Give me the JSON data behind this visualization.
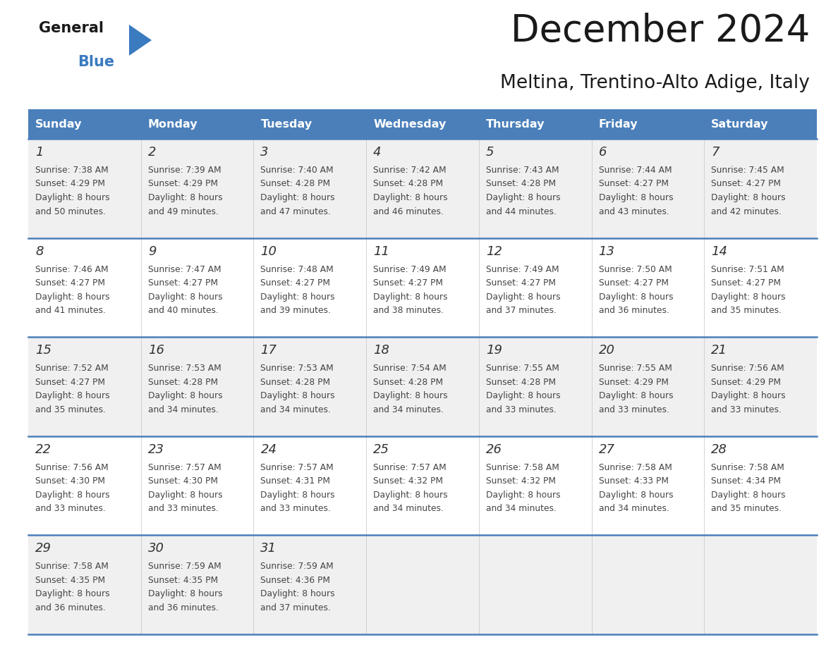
{
  "title": "December 2024",
  "subtitle": "Meltina, Trentino-Alto Adige, Italy",
  "days_of_week": [
    "Sunday",
    "Monday",
    "Tuesday",
    "Wednesday",
    "Thursday",
    "Friday",
    "Saturday"
  ],
  "header_bg": "#4a7fba",
  "header_text": "#ffffff",
  "row_bg_odd": "#f0f0f0",
  "row_bg_even": "#ffffff",
  "cell_text_color": "#333333",
  "day_num_color": "#333333",
  "line_color": "#4a7fba",
  "logo_general_color": "#1a1a1a",
  "logo_blue_color": "#3a7abf",
  "title_color": "#1a1a1a",
  "subtitle_color": "#1a1a1a",
  "calendar_data": [
    [
      {
        "day": 1,
        "sunrise": "7:38 AM",
        "sunset": "4:29 PM",
        "daylight_hours": 8,
        "daylight_mins": 50
      },
      {
        "day": 2,
        "sunrise": "7:39 AM",
        "sunset": "4:29 PM",
        "daylight_hours": 8,
        "daylight_mins": 49
      },
      {
        "day": 3,
        "sunrise": "7:40 AM",
        "sunset": "4:28 PM",
        "daylight_hours": 8,
        "daylight_mins": 47
      },
      {
        "day": 4,
        "sunrise": "7:42 AM",
        "sunset": "4:28 PM",
        "daylight_hours": 8,
        "daylight_mins": 46
      },
      {
        "day": 5,
        "sunrise": "7:43 AM",
        "sunset": "4:28 PM",
        "daylight_hours": 8,
        "daylight_mins": 44
      },
      {
        "day": 6,
        "sunrise": "7:44 AM",
        "sunset": "4:27 PM",
        "daylight_hours": 8,
        "daylight_mins": 43
      },
      {
        "day": 7,
        "sunrise": "7:45 AM",
        "sunset": "4:27 PM",
        "daylight_hours": 8,
        "daylight_mins": 42
      }
    ],
    [
      {
        "day": 8,
        "sunrise": "7:46 AM",
        "sunset": "4:27 PM",
        "daylight_hours": 8,
        "daylight_mins": 41
      },
      {
        "day": 9,
        "sunrise": "7:47 AM",
        "sunset": "4:27 PM",
        "daylight_hours": 8,
        "daylight_mins": 40
      },
      {
        "day": 10,
        "sunrise": "7:48 AM",
        "sunset": "4:27 PM",
        "daylight_hours": 8,
        "daylight_mins": 39
      },
      {
        "day": 11,
        "sunrise": "7:49 AM",
        "sunset": "4:27 PM",
        "daylight_hours": 8,
        "daylight_mins": 38
      },
      {
        "day": 12,
        "sunrise": "7:49 AM",
        "sunset": "4:27 PM",
        "daylight_hours": 8,
        "daylight_mins": 37
      },
      {
        "day": 13,
        "sunrise": "7:50 AM",
        "sunset": "4:27 PM",
        "daylight_hours": 8,
        "daylight_mins": 36
      },
      {
        "day": 14,
        "sunrise": "7:51 AM",
        "sunset": "4:27 PM",
        "daylight_hours": 8,
        "daylight_mins": 35
      }
    ],
    [
      {
        "day": 15,
        "sunrise": "7:52 AM",
        "sunset": "4:27 PM",
        "daylight_hours": 8,
        "daylight_mins": 35
      },
      {
        "day": 16,
        "sunrise": "7:53 AM",
        "sunset": "4:28 PM",
        "daylight_hours": 8,
        "daylight_mins": 34
      },
      {
        "day": 17,
        "sunrise": "7:53 AM",
        "sunset": "4:28 PM",
        "daylight_hours": 8,
        "daylight_mins": 34
      },
      {
        "day": 18,
        "sunrise": "7:54 AM",
        "sunset": "4:28 PM",
        "daylight_hours": 8,
        "daylight_mins": 34
      },
      {
        "day": 19,
        "sunrise": "7:55 AM",
        "sunset": "4:28 PM",
        "daylight_hours": 8,
        "daylight_mins": 33
      },
      {
        "day": 20,
        "sunrise": "7:55 AM",
        "sunset": "4:29 PM",
        "daylight_hours": 8,
        "daylight_mins": 33
      },
      {
        "day": 21,
        "sunrise": "7:56 AM",
        "sunset": "4:29 PM",
        "daylight_hours": 8,
        "daylight_mins": 33
      }
    ],
    [
      {
        "day": 22,
        "sunrise": "7:56 AM",
        "sunset": "4:30 PM",
        "daylight_hours": 8,
        "daylight_mins": 33
      },
      {
        "day": 23,
        "sunrise": "7:57 AM",
        "sunset": "4:30 PM",
        "daylight_hours": 8,
        "daylight_mins": 33
      },
      {
        "day": 24,
        "sunrise": "7:57 AM",
        "sunset": "4:31 PM",
        "daylight_hours": 8,
        "daylight_mins": 33
      },
      {
        "day": 25,
        "sunrise": "7:57 AM",
        "sunset": "4:32 PM",
        "daylight_hours": 8,
        "daylight_mins": 34
      },
      {
        "day": 26,
        "sunrise": "7:58 AM",
        "sunset": "4:32 PM",
        "daylight_hours": 8,
        "daylight_mins": 34
      },
      {
        "day": 27,
        "sunrise": "7:58 AM",
        "sunset": "4:33 PM",
        "daylight_hours": 8,
        "daylight_mins": 34
      },
      {
        "day": 28,
        "sunrise": "7:58 AM",
        "sunset": "4:34 PM",
        "daylight_hours": 8,
        "daylight_mins": 35
      }
    ],
    [
      {
        "day": 29,
        "sunrise": "7:58 AM",
        "sunset": "4:35 PM",
        "daylight_hours": 8,
        "daylight_mins": 36
      },
      {
        "day": 30,
        "sunrise": "7:59 AM",
        "sunset": "4:35 PM",
        "daylight_hours": 8,
        "daylight_mins": 36
      },
      {
        "day": 31,
        "sunrise": "7:59 AM",
        "sunset": "4:36 PM",
        "daylight_hours": 8,
        "daylight_mins": 37
      },
      null,
      null,
      null,
      null
    ]
  ]
}
